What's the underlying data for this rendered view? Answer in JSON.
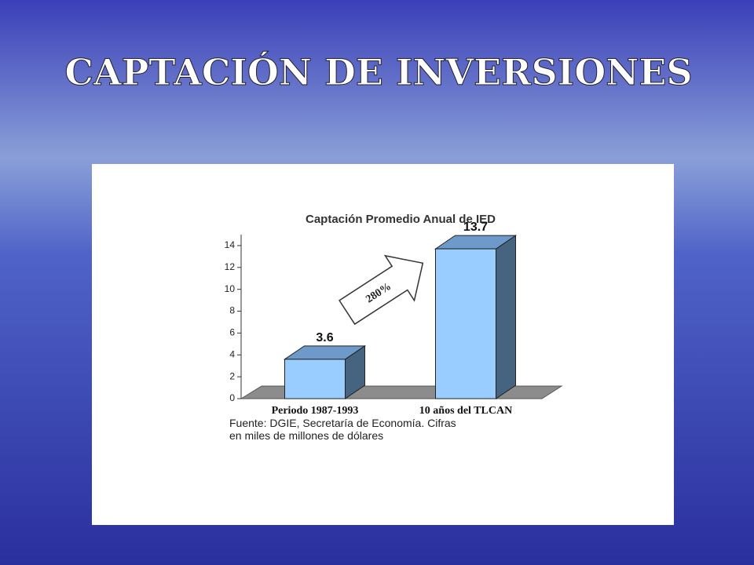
{
  "slide_title": "CAPTACIÓN DE INVERSIONES",
  "chart_data": {
    "type": "bar3d",
    "title": "Captación Promedio Anual de IED",
    "categories": [
      "Periodo 1987-1993",
      "10 años del TLCAN"
    ],
    "values": [
      3.6,
      13.7
    ],
    "color": "#99ccff",
    "ylim": [
      0,
      15
    ],
    "yticks": [
      0,
      2,
      4,
      6,
      8,
      10,
      12,
      14
    ],
    "annotation": "280%",
    "source": [
      "Fuente: DGIE, Secretaría de Economía. Cifras",
      "en miles de millones de dólares"
    ]
  }
}
